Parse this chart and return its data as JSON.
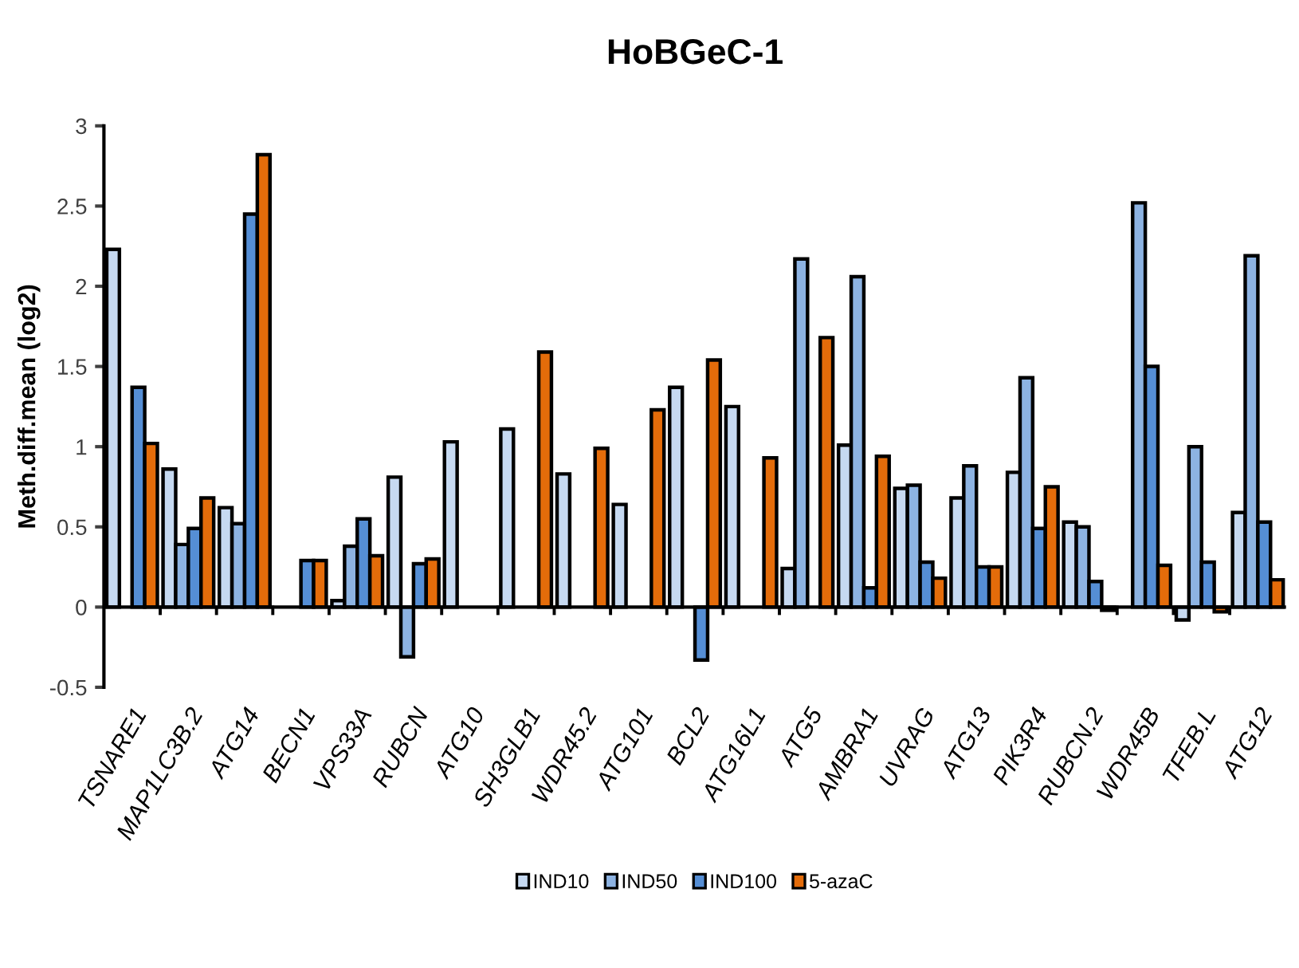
{
  "chart_data": {
    "type": "bar",
    "title": "HoBGeC-1",
    "ylabel": "Meth.diff.mean (log2)",
    "categories": [
      "TSNARE1",
      "MAP1LC3B.2",
      "ATG14",
      "BECN1",
      "VPS33A",
      "RUBCN",
      "ATG10",
      "SH3GLB1",
      "WDR45.2",
      "ATG101",
      "BCL2",
      "ATG16L1",
      "ATG5",
      "AMBRA1",
      "UVRAG",
      "ATG13",
      "PIK3R4",
      "RUBCN.2",
      "WDR45B",
      "TFEB.L",
      "ATG12"
    ],
    "series": [
      {
        "name": "IND10",
        "color": "#c6d9f1",
        "values": [
          2.23,
          0.86,
          0.62,
          null,
          0.04,
          0.81,
          1.03,
          1.11,
          0.83,
          0.64,
          1.37,
          1.25,
          0.24,
          1.01,
          0.74,
          0.68,
          0.84,
          0.53,
          null,
          -0.08,
          0.59
        ]
      },
      {
        "name": "IND50",
        "color": "#8db3e2",
        "values": [
          null,
          0.39,
          0.52,
          null,
          0.38,
          -0.31,
          null,
          null,
          null,
          null,
          null,
          null,
          2.17,
          2.06,
          0.76,
          0.88,
          1.43,
          0.5,
          2.52,
          1.0,
          2.19
        ]
      },
      {
        "name": "IND100",
        "color": "#558ed5",
        "values": [
          1.37,
          0.49,
          2.45,
          0.29,
          0.55,
          0.27,
          null,
          null,
          null,
          null,
          -0.33,
          null,
          null,
          0.12,
          0.28,
          0.25,
          0.49,
          0.16,
          1.5,
          0.28,
          0.53
        ]
      },
      {
        "name": "5-azaC",
        "color": "#e46c0a",
        "values": [
          1.02,
          0.68,
          2.82,
          0.29,
          0.32,
          0.3,
          null,
          1.59,
          0.99,
          1.23,
          1.54,
          0.93,
          1.68,
          0.94,
          0.18,
          0.25,
          0.75,
          -0.02,
          0.26,
          -0.03,
          0.17
        ]
      }
    ],
    "ylim": [
      -0.5,
      3
    ],
    "yticks": [
      -0.5,
      0,
      0.5,
      1,
      1.5,
      2,
      2.5,
      3
    ],
    "legend": "bottom"
  }
}
